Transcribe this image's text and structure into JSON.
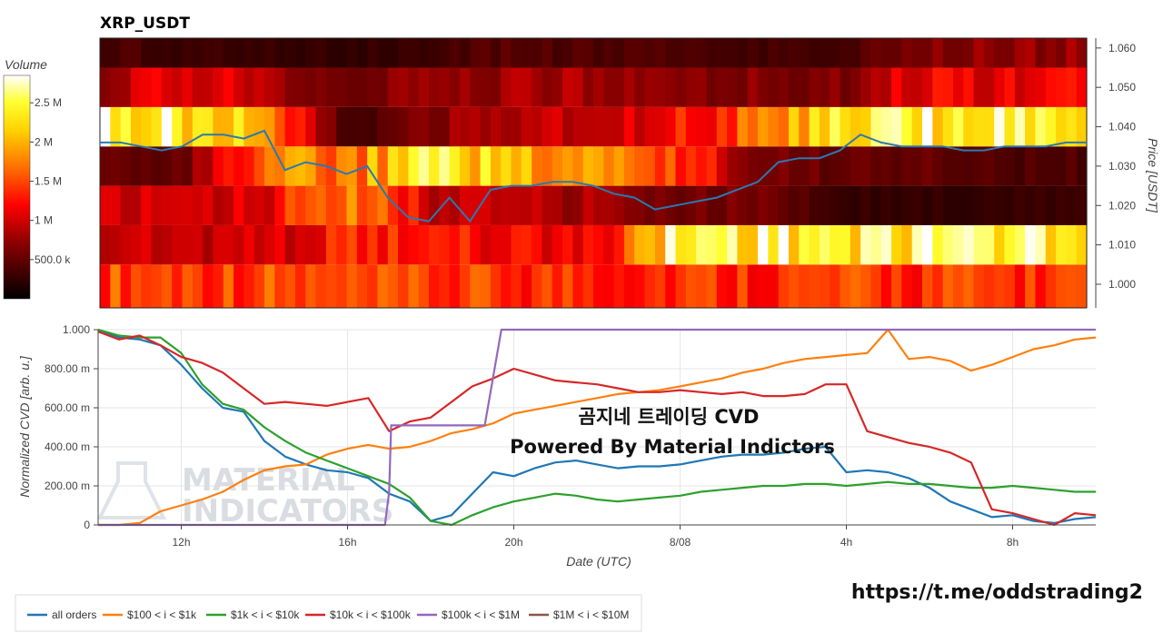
{
  "chart_data": [
    {
      "type": "heatmap",
      "title": "XRP_USDT",
      "ylabel": "Price [USDT]",
      "yticks": [
        "1.000",
        "1.010",
        "1.020",
        "1.030",
        "1.040",
        "1.050",
        "1.060"
      ],
      "ytick_values": [
        1.0,
        1.01,
        1.02,
        1.03,
        1.04,
        1.05,
        1.06
      ],
      "ylim": [
        0.994,
        1.0625
      ],
      "price_levels": [
        1.0,
        1.01,
        1.02,
        1.03,
        1.04,
        1.05,
        1.06
      ],
      "colorbar": {
        "label": "Volume",
        "ticks": [
          "500.0 k",
          "1 M",
          "1.5 M",
          "2 M",
          "2.5 M"
        ],
        "tick_values": [
          500000,
          1000000,
          1500000,
          2000000,
          2500000
        ],
        "range": [
          0,
          2850000
        ]
      },
      "volume_profile_by_hour": {
        "hours": [
          0,
          2,
          4,
          6,
          8,
          10,
          12,
          14,
          16,
          18,
          20,
          22,
          24
        ],
        "levels": {
          "1.060": [
            400000,
            300000,
            300000,
            250000,
            300000,
            450000,
            420000,
            380000,
            350000,
            350000,
            700000,
            750000,
            750000
          ],
          "1.050": [
            800000,
            1200000,
            900000,
            600000,
            700000,
            800000,
            850000,
            700000,
            700000,
            650000,
            1200000,
            1100000,
            1150000
          ],
          "1.040": [
            2600000,
            2500000,
            1800000,
            300000,
            700000,
            900000,
            1000000,
            1200000,
            1600000,
            2300000,
            2500000,
            2600000,
            2600000
          ],
          "1.030": [
            600000,
            500000,
            1800000,
            1600000,
            2400000,
            2100000,
            1900000,
            1500000,
            700000,
            500000,
            500000,
            400000,
            400000
          ],
          "1.020": [
            900000,
            1000000,
            1100000,
            1900000,
            1000000,
            900000,
            800000,
            600000,
            600000,
            300000,
            250000,
            300000,
            300000
          ],
          "1.010": [
            1000000,
            1000000,
            1000000,
            1300000,
            1300000,
            1200000,
            1100000,
            2500000,
            2500000,
            2500000,
            2500000,
            2500000,
            2500000
          ],
          "1.000": [
            1500000,
            1500000,
            1500000,
            1400000,
            1400000,
            1400000,
            1400000,
            1400000,
            1400000,
            1400000,
            1400000,
            1400000,
            1400000
          ]
        }
      },
      "price_line": {
        "x_hours": [
          0,
          0.5,
          1,
          1.5,
          2,
          2.5,
          3,
          3.5,
          4,
          4.5,
          5,
          5.5,
          6,
          6.5,
          7,
          7.5,
          8,
          8.5,
          9,
          9.5,
          10,
          10.5,
          11,
          11.5,
          12,
          12.5,
          13,
          13.5,
          14,
          14.5,
          15,
          15.5,
          16,
          16.5,
          17,
          17.5,
          18,
          18.5,
          19,
          19.5,
          20,
          20.5,
          21,
          21.5,
          22,
          22.5,
          23,
          23.5,
          24
        ],
        "y": [
          1.036,
          1.036,
          1.035,
          1.034,
          1.035,
          1.038,
          1.038,
          1.037,
          1.039,
          1.029,
          1.031,
          1.03,
          1.028,
          1.03,
          1.022,
          1.017,
          1.016,
          1.022,
          1.016,
          1.024,
          1.025,
          1.025,
          1.026,
          1.026,
          1.025,
          1.023,
          1.022,
          1.019,
          1.02,
          1.021,
          1.022,
          1.024,
          1.026,
          1.031,
          1.032,
          1.032,
          1.034,
          1.038,
          1.036,
          1.035,
          1.035,
          1.035,
          1.034,
          1.034,
          1.035,
          1.035,
          1.035,
          1.036,
          1.036
        ]
      }
    },
    {
      "type": "line",
      "xlabel": "Date (UTC)",
      "ylabel": "Normalized CVD [arb. u.]",
      "xticks": [
        "12h",
        "16h",
        "20h",
        "8/08",
        "4h",
        "8h"
      ],
      "xtick_hours": [
        2,
        6,
        10,
        14,
        18,
        22
      ],
      "xlim_hours": [
        0,
        24
      ],
      "ylim": [
        0,
        1.0
      ],
      "yticks": [
        "0",
        "200.00 m",
        "400.00 m",
        "600.00 m",
        "800.00 m",
        "1.000"
      ],
      "ytick_values": [
        0,
        0.2,
        0.4,
        0.6,
        0.8,
        1.0
      ],
      "series": [
        {
          "name": "all orders",
          "color": "#1f77b4",
          "x": [
            0,
            0.5,
            1,
            1.5,
            2,
            2.5,
            3,
            3.5,
            4,
            4.5,
            5,
            5.5,
            6,
            6.5,
            7,
            7.5,
            8,
            8.5,
            9,
            9.5,
            10,
            10.5,
            11,
            11.5,
            12,
            12.5,
            13,
            13.5,
            14,
            14.5,
            15,
            15.5,
            16,
            16.5,
            17,
            17.5,
            18,
            18.5,
            19,
            19.5,
            20,
            20.5,
            21,
            21.5,
            22,
            22.5,
            23,
            23.5,
            24
          ],
          "y": [
            1.0,
            0.96,
            0.95,
            0.92,
            0.82,
            0.7,
            0.6,
            0.58,
            0.43,
            0.35,
            0.31,
            0.28,
            0.27,
            0.24,
            0.16,
            0.12,
            0.02,
            0.05,
            0.16,
            0.27,
            0.25,
            0.29,
            0.32,
            0.33,
            0.31,
            0.29,
            0.3,
            0.3,
            0.31,
            0.33,
            0.35,
            0.36,
            0.36,
            0.37,
            0.39,
            0.4,
            0.27,
            0.28,
            0.27,
            0.24,
            0.19,
            0.12,
            0.08,
            0.04,
            0.05,
            0.02,
            0.01,
            0.03,
            0.04
          ]
        },
        {
          "name": "$100 < i < $1k",
          "color": "#ff7f0e",
          "x": [
            0,
            0.5,
            1,
            1.5,
            2,
            2.5,
            3,
            3.5,
            4,
            4.5,
            5,
            5.5,
            6,
            6.5,
            7,
            7.5,
            8,
            8.5,
            9,
            9.5,
            10,
            10.5,
            11,
            11.5,
            12,
            12.5,
            13,
            13.5,
            14,
            14.5,
            15,
            15.5,
            16,
            16.5,
            17,
            17.5,
            18,
            18.5,
            19,
            19.5,
            20,
            20.5,
            21,
            21.5,
            22,
            22.5,
            23,
            23.5,
            24
          ],
          "y": [
            0.0,
            0.0,
            0.01,
            0.07,
            0.1,
            0.13,
            0.17,
            0.23,
            0.28,
            0.3,
            0.31,
            0.36,
            0.39,
            0.41,
            0.39,
            0.4,
            0.43,
            0.47,
            0.49,
            0.52,
            0.57,
            0.59,
            0.61,
            0.63,
            0.65,
            0.67,
            0.68,
            0.69,
            0.71,
            0.73,
            0.75,
            0.78,
            0.8,
            0.83,
            0.85,
            0.86,
            0.87,
            0.88,
            1.0,
            0.85,
            0.86,
            0.84,
            0.79,
            0.82,
            0.86,
            0.9,
            0.92,
            0.95,
            0.96
          ]
        },
        {
          "name": "$1k < i < $10k",
          "color": "#2ca02c",
          "x": [
            0,
            0.5,
            1,
            1.5,
            2,
            2.5,
            3,
            3.5,
            4,
            4.5,
            5,
            5.5,
            6,
            6.5,
            7,
            7.5,
            8,
            8.5,
            9,
            9.5,
            10,
            10.5,
            11,
            11.5,
            12,
            12.5,
            13,
            13.5,
            14,
            14.5,
            15,
            15.5,
            16,
            16.5,
            17,
            17.5,
            18,
            18.5,
            19,
            19.5,
            20,
            20.5,
            21,
            21.5,
            22,
            22.5,
            23,
            23.5,
            24
          ],
          "y": [
            1.0,
            0.97,
            0.96,
            0.96,
            0.88,
            0.72,
            0.62,
            0.59,
            0.5,
            0.43,
            0.37,
            0.33,
            0.29,
            0.25,
            0.21,
            0.14,
            0.02,
            0.0,
            0.05,
            0.09,
            0.12,
            0.14,
            0.16,
            0.15,
            0.13,
            0.12,
            0.13,
            0.14,
            0.15,
            0.17,
            0.18,
            0.19,
            0.2,
            0.2,
            0.21,
            0.21,
            0.2,
            0.21,
            0.22,
            0.21,
            0.21,
            0.2,
            0.19,
            0.19,
            0.2,
            0.19,
            0.18,
            0.17,
            0.17
          ]
        },
        {
          "name": "$10k < i < $100k",
          "color": "#d62728",
          "x": [
            0,
            0.5,
            1,
            1.5,
            2,
            2.5,
            3,
            3.5,
            4,
            4.5,
            5,
            5.5,
            6,
            6.5,
            7,
            7.5,
            8,
            8.5,
            9,
            9.5,
            10,
            10.5,
            11,
            11.5,
            12,
            12.5,
            13,
            13.5,
            14,
            14.5,
            15,
            15.5,
            16,
            16.5,
            17,
            17.5,
            18,
            18.5,
            19,
            19.5,
            20,
            20.5,
            21,
            21.5,
            22,
            22.5,
            23,
            23.5,
            24
          ],
          "y": [
            0.99,
            0.95,
            0.97,
            0.92,
            0.86,
            0.83,
            0.78,
            0.7,
            0.62,
            0.63,
            0.62,
            0.61,
            0.63,
            0.65,
            0.48,
            0.53,
            0.55,
            0.63,
            0.71,
            0.75,
            0.8,
            0.77,
            0.74,
            0.73,
            0.72,
            0.7,
            0.68,
            0.68,
            0.69,
            0.68,
            0.67,
            0.68,
            0.66,
            0.66,
            0.67,
            0.72,
            0.72,
            0.48,
            0.45,
            0.42,
            0.4,
            0.37,
            0.32,
            0.08,
            0.06,
            0.03,
            0.0,
            0.06,
            0.05
          ]
        },
        {
          "name": "$100k < i < $1M",
          "color": "#9467bd",
          "x": [
            0,
            1,
            2,
            3,
            4,
            5,
            6,
            6.9,
            7.0,
            7.05,
            7.3,
            8,
            9,
            9.3,
            9.7,
            10,
            11,
            12,
            14,
            16,
            18,
            20,
            22,
            24
          ],
          "y": [
            0.0,
            0.0,
            0.0,
            0.0,
            0.0,
            0.0,
            0.0,
            0.0,
            0.17,
            0.51,
            0.51,
            0.51,
            0.51,
            0.51,
            1.0,
            1.0,
            1.0,
            1.0,
            1.0,
            1.0,
            1.0,
            1.0,
            1.0,
            1.0
          ]
        },
        {
          "name": "$1M < i < $10M",
          "color": "#8c564b",
          "x": [],
          "y": []
        }
      ]
    }
  ],
  "overlay": {
    "line1": "곰지네 트레이딩 CVD",
    "line2": "Powered By Material Indictors",
    "url": "https://t.me/oddstrading2"
  },
  "watermark": {
    "line1": "MATERIAL",
    "line2": "INDICATORS"
  }
}
